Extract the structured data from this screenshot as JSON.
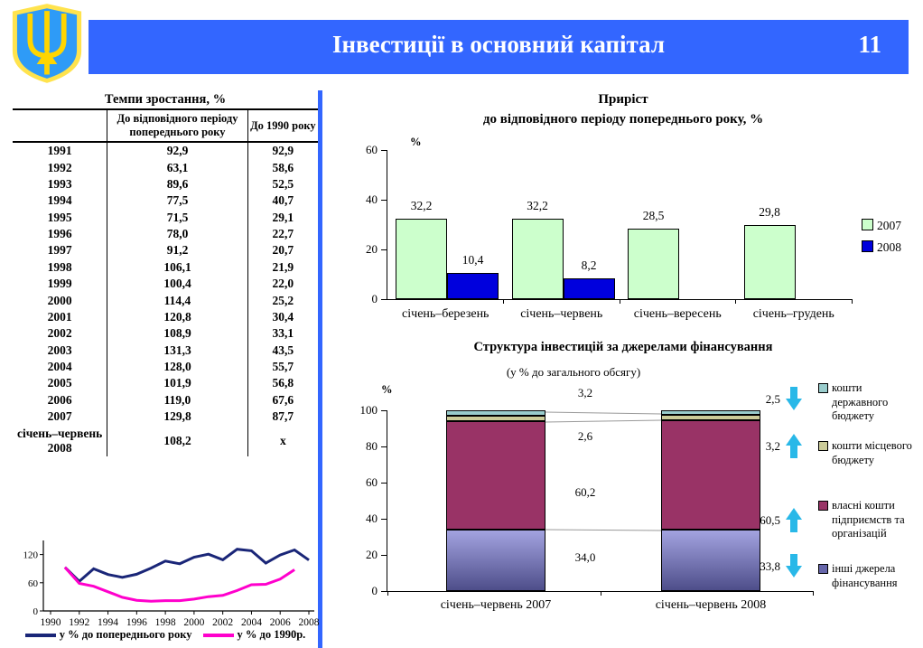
{
  "header": {
    "title": "Інвестиції в основний капітал",
    "page_number": "11",
    "accent_color": "#3366ff"
  },
  "table": {
    "title": "Темпи зростання, %",
    "columns": [
      "",
      "До відповідного періоду попереднього року",
      "До 1990 року"
    ],
    "rows": [
      [
        "1991",
        "92,9",
        "92,9"
      ],
      [
        "1992",
        "63,1",
        "58,6"
      ],
      [
        "1993",
        "89,6",
        "52,5"
      ],
      [
        "1994",
        "77,5",
        "40,7"
      ],
      [
        "1995",
        "71,5",
        "29,1"
      ],
      [
        "1996",
        "78,0",
        "22,7"
      ],
      [
        "1997",
        "91,2",
        "20,7"
      ],
      [
        "1998",
        "106,1",
        "21,9"
      ],
      [
        "1999",
        "100,4",
        "22,0"
      ],
      [
        "2000",
        "114,4",
        "25,2"
      ],
      [
        "2001",
        "120,8",
        "30,4"
      ],
      [
        "2002",
        "108,9",
        "33,1"
      ],
      [
        "2003",
        "131,3",
        "43,5"
      ],
      [
        "2004",
        "128,0",
        "55,7"
      ],
      [
        "2005",
        "101,9",
        "56,8"
      ],
      [
        "2006",
        "119,0",
        "67,6"
      ],
      [
        "2007",
        "129,8",
        "87,7"
      ],
      [
        "січень–червень 2008",
        "108,2",
        "х"
      ]
    ]
  },
  "chart_data": [
    {
      "id": "growth-line",
      "type": "line",
      "x": [
        1991,
        1992,
        1993,
        1994,
        1995,
        1996,
        1997,
        1998,
        1999,
        2000,
        2001,
        2002,
        2003,
        2004,
        2005,
        2006,
        2007,
        2008
      ],
      "series": [
        {
          "name": "у % до попереднього року",
          "color": "#1a2678",
          "values": [
            92.9,
            63.1,
            89.6,
            77.5,
            71.5,
            78.0,
            91.2,
            106.1,
            100.4,
            114.4,
            120.8,
            108.9,
            131.3,
            128.0,
            101.9,
            119.0,
            129.8,
            108.2
          ]
        },
        {
          "name": "у % до 1990р.",
          "color": "#ff00cc",
          "values": [
            92.9,
            58.6,
            52.5,
            40.7,
            29.1,
            22.7,
            20.7,
            21.9,
            22.0,
            25.2,
            30.4,
            33.1,
            43.5,
            55.7,
            56.8,
            67.6,
            87.7,
            null
          ]
        }
      ],
      "xticks": [
        1990,
        1992,
        1994,
        1996,
        1998,
        2000,
        2002,
        2004,
        2006,
        2008
      ],
      "yticks": [
        0,
        60,
        120
      ],
      "ylim": [
        0,
        150
      ],
      "legend_position": "bottom",
      "grid": false
    },
    {
      "id": "increment-bar",
      "type": "bar",
      "title_line1": "Приріст",
      "title_line2": "до відповідного періоду попереднього року, %",
      "axis_label": "%",
      "categories": [
        "січень–березень",
        "січень–червень",
        "січень–вересень",
        "січень–грудень"
      ],
      "series": [
        {
          "name": "2007",
          "color": "#ccffcc",
          "values": [
            32.2,
            32.2,
            28.5,
            29.8
          ]
        },
        {
          "name": "2008",
          "color": "#0000dd",
          "values": [
            10.4,
            8.2,
            null,
            null
          ]
        }
      ],
      "labels": [
        [
          "32,2",
          "32,2",
          "28,5",
          "29,8"
        ],
        [
          "10,4",
          "8,2",
          "",
          ""
        ]
      ],
      "yticks": [
        0,
        20,
        40,
        60
      ],
      "ylim": [
        0,
        60
      ],
      "legend_position": "right",
      "grid": false
    },
    {
      "id": "structure-stacked",
      "type": "stacked-bar",
      "title": "Структура інвестицій за джерелами фінансування",
      "subtitle": "(у % до загального обсягу)",
      "axis_label": "%",
      "categories": [
        "січень–червень 2007",
        "січень–червень 2008"
      ],
      "segments": [
        {
          "name": "інші джерела фінансування",
          "color": "#6666aa",
          "gradient_top": "#a3a3e0",
          "gradient_bottom": "#4e4e8a",
          "values": [
            34.0,
            33.8
          ]
        },
        {
          "name": "власні кошти підприємств та організацій",
          "color": "#993366",
          "values": [
            60.2,
            60.5
          ]
        },
        {
          "name": "кошти місцевого бюджету",
          "color": "#cccc99",
          "values": [
            2.6,
            3.2
          ]
        },
        {
          "name": "кошти державного бюджету",
          "color": "#99cccc",
          "values": [
            3.2,
            2.5
          ]
        }
      ],
      "labels_2007": [
        "3,2",
        "2,6",
        "60,2",
        "34,0"
      ],
      "changes_2008": [
        {
          "value": "2,5",
          "arrow": "down"
        },
        {
          "value": "3,2",
          "arrow": "up"
        },
        {
          "value": "60,5",
          "arrow": "up"
        },
        {
          "value": "33,8",
          "arrow": "down"
        }
      ],
      "arrow_color": "#29b8e8",
      "legend": [
        {
          "label": "кошти державного бюджету",
          "color": "#99cccc"
        },
        {
          "label": "кошти місцевого бюджету",
          "color": "#cccc99"
        },
        {
          "label": "власні кошти підприємств та організацій",
          "color": "#993366"
        },
        {
          "label": "інші джерела фінансування",
          "color": "#6666aa"
        }
      ],
      "yticks": [
        0,
        20,
        40,
        60,
        80,
        100
      ],
      "ylim": [
        0,
        100
      ],
      "legend_position": "right",
      "grid": false
    }
  ]
}
